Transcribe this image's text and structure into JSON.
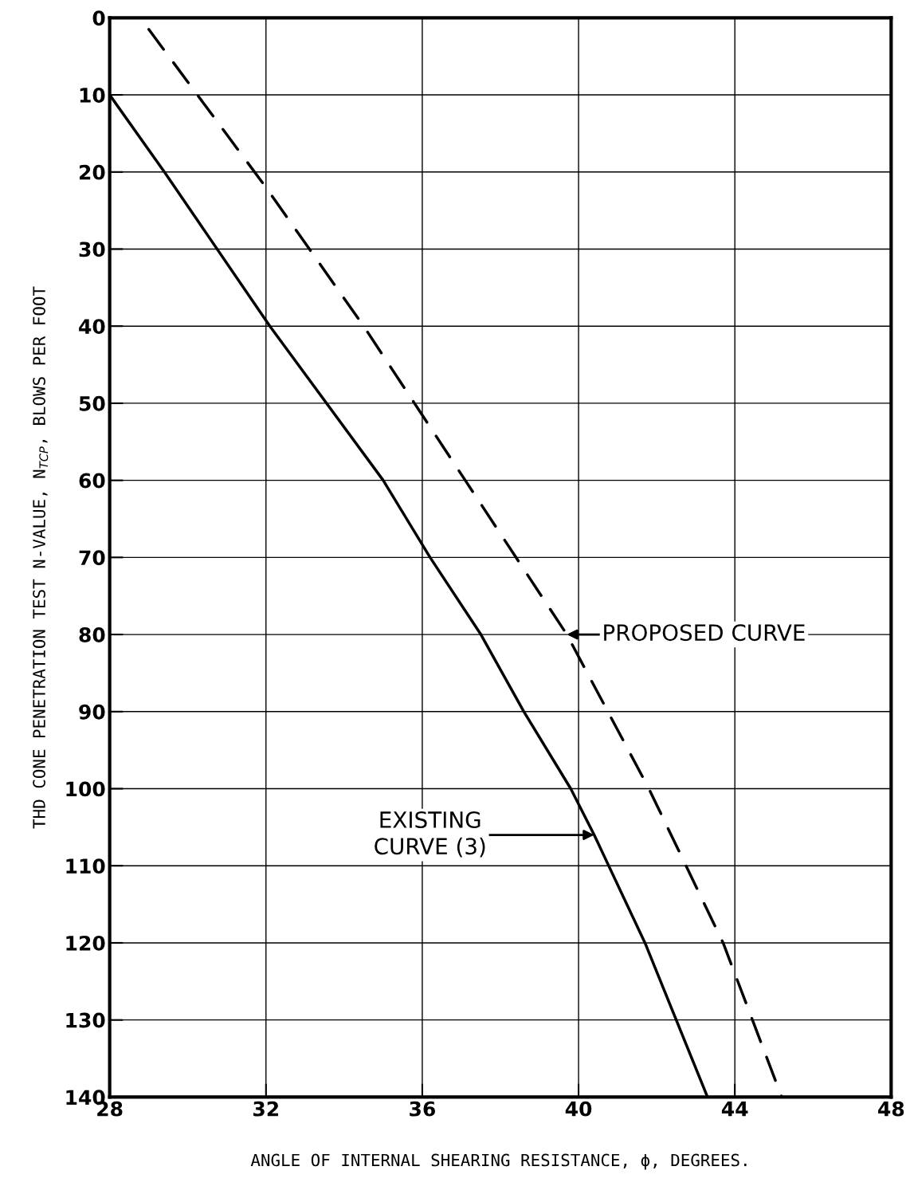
{
  "chart_data": {
    "type": "line",
    "xlabel": "ANGLE OF INTERNAL SHEARING RESISTANCE, ϕ, DEGREES.",
    "ylabel": "THD CONE PENETRATION TEST N-VALUE, N$_{TCP}$, BLOWS PER FOOT",
    "series": [
      {
        "color": "#000000",
        "line_style": "solid",
        "x": [
          28.0,
          29.4,
          32.1,
          35.0,
          36.2,
          37.5,
          38.6,
          39.8,
          40.4,
          41.7,
          43.3
        ],
        "values": [
          10,
          20,
          40,
          60,
          70,
          80,
          90,
          100,
          106,
          120,
          140
        ]
      },
      {
        "color": "#000000",
        "line_style": "dashed",
        "x": [
          29.0,
          32.0,
          34.5,
          37.1,
          39.7,
          41.8,
          43.7,
          45.2
        ],
        "values": [
          1.5,
          22,
          40,
          60,
          80,
          100,
          120,
          140
        ]
      }
    ],
    "annotations": [
      "PROPOSED CURVE",
      "EXISTING\nCURVE (3)"
    ],
    "xlim": [
      28,
      48
    ],
    "xticks": [
      28,
      32,
      36,
      40,
      44,
      48
    ],
    "ylim": [
      140,
      0
    ],
    "yticks": [
      0,
      10,
      20,
      30,
      40,
      50,
      60,
      70,
      80,
      90,
      100,
      110,
      120,
      130,
      140
    ],
    "grid": true,
    "marker": "none"
  }
}
